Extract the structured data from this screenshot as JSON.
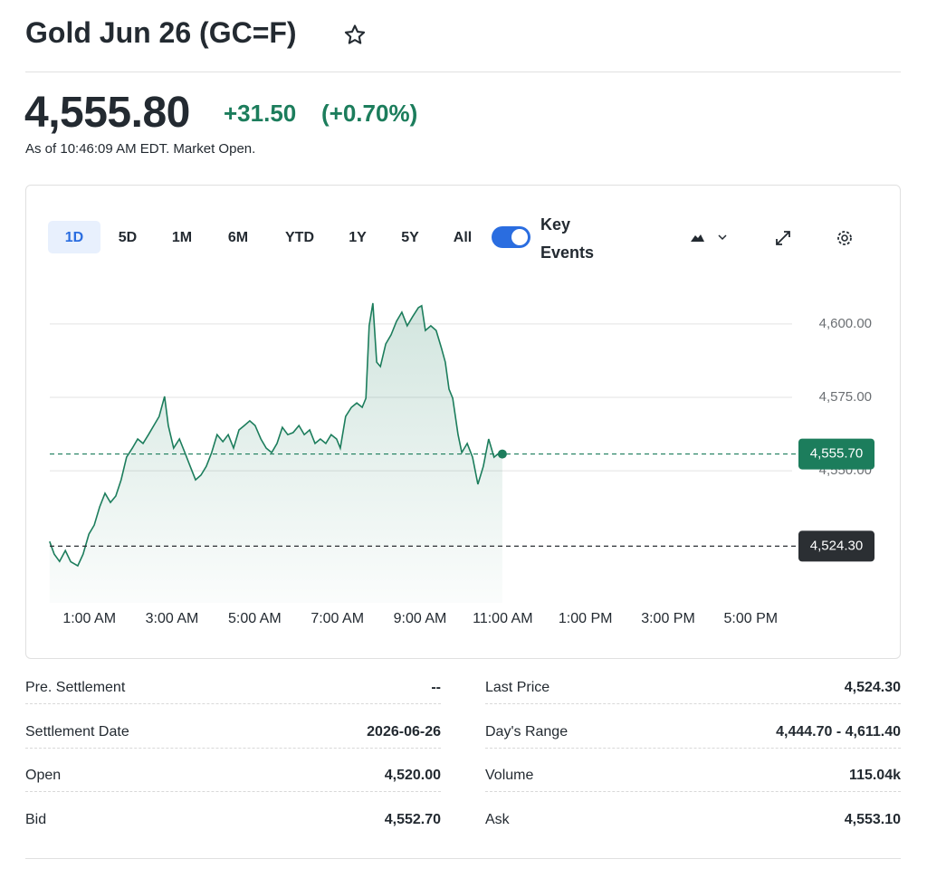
{
  "header": {
    "title": "Gold Jun 26 (GC=F)"
  },
  "quote": {
    "price": "4,555.80",
    "change": "+31.50",
    "change_percent": "(+0.70%)",
    "as_of": "As of 10:46:09 AM EDT. Market Open."
  },
  "ranges": [
    "1D",
    "5D",
    "1M",
    "6M",
    "YTD",
    "1Y",
    "5Y",
    "All"
  ],
  "key_events": "Key Events",
  "chart_data": {
    "type": "line",
    "color": "#1c7d5c",
    "x": [
      0.04,
      0.15,
      0.28,
      0.42,
      0.55,
      0.72,
      0.85,
      0.99,
      1.12,
      1.25,
      1.38,
      1.51,
      1.64,
      1.77,
      1.9,
      2.04,
      2.17,
      2.3,
      2.43,
      2.56,
      2.69,
      2.82,
      2.91,
      3.04,
      3.18,
      3.31,
      3.44,
      3.57,
      3.7,
      3.83,
      3.96,
      4.09,
      4.23,
      4.36,
      4.49,
      4.62,
      4.75,
      4.88,
      5.01,
      5.15,
      5.28,
      5.41,
      5.54,
      5.67,
      5.8,
      5.93,
      6.07,
      6.2,
      6.33,
      6.46,
      6.59,
      6.72,
      6.85,
      6.98,
      7.07,
      7.2,
      7.34,
      7.47,
      7.6,
      7.69,
      7.77,
      7.86,
      7.95,
      8.04,
      8.17,
      8.3,
      8.43,
      8.56,
      8.69,
      8.82,
      8.96,
      9.04,
      9.13,
      9.26,
      9.39,
      9.52,
      9.61,
      9.7,
      9.79,
      9.92,
      10.01,
      10.14,
      10.27,
      10.4,
      10.53,
      10.66,
      10.79,
      10.88,
      10.99
    ],
    "values": [
      4525.9,
      4521.6,
      4519.1,
      4522.8,
      4519.0,
      4517.6,
      4521.6,
      4528.4,
      4531.5,
      4537.7,
      4542.3,
      4539.2,
      4541.4,
      4546.9,
      4554.6,
      4557.7,
      4560.8,
      4559.3,
      4562.3,
      4565.4,
      4568.5,
      4575.3,
      4565.4,
      4557.7,
      4560.8,
      4556.2,
      4551.5,
      4546.9,
      4548.5,
      4551.5,
      4556.2,
      4562.3,
      4559.9,
      4562.3,
      4557.7,
      4563.9,
      4565.4,
      4567.0,
      4565.4,
      4560.8,
      4557.7,
      4556.2,
      4559.3,
      4564.8,
      4562.3,
      4563.0,
      4565.4,
      4562.3,
      4563.9,
      4559.3,
      4560.8,
      4559.3,
      4562.3,
      4560.8,
      4557.7,
      4568.5,
      4571.6,
      4573.1,
      4571.6,
      4574.7,
      4599.4,
      4607.1,
      4587.0,
      4585.5,
      4593.2,
      4596.3,
      4600.9,
      4604.0,
      4599.4,
      4602.5,
      4605.6,
      4606.2,
      4597.8,
      4599.4,
      4597.8,
      4591.7,
      4587.0,
      4577.8,
      4574.7,
      4562.3,
      4556.2,
      4559.3,
      4554.6,
      4545.4,
      4551.5,
      4560.8,
      4554.6,
      4555.7,
      4555.7
    ],
    "xlim": [
      0,
      18
    ],
    "xticks": [
      {
        "value": 1,
        "label": "1:00 AM"
      },
      {
        "value": 3,
        "label": "3:00 AM"
      },
      {
        "value": 5,
        "label": "5:00 AM"
      },
      {
        "value": 7,
        "label": "7:00 AM"
      },
      {
        "value": 9,
        "label": "9:00 AM"
      },
      {
        "value": 11,
        "label": "11:00 AM"
      },
      {
        "value": 13,
        "label": "1:00 PM"
      },
      {
        "value": 15,
        "label": "3:00 PM"
      },
      {
        "value": 17,
        "label": "5:00 PM"
      }
    ],
    "ylim": [
      4505,
      4612
    ],
    "yticks": [
      {
        "value": 4550,
        "label": "4,550.00"
      },
      {
        "value": 4575,
        "label": "4,575.00"
      },
      {
        "value": 4600,
        "label": "4,600.00"
      }
    ],
    "grid": true,
    "reference_lines": [
      {
        "value": 4555.7,
        "label": "4,555.70",
        "color": "#1c7d5c"
      },
      {
        "value": 4524.3,
        "label": "4,524.30",
        "color": "#2b2f33"
      }
    ]
  },
  "stats": {
    "rows": [
      [
        "Pre. Settlement",
        "--",
        "Last Price",
        "4,524.30"
      ],
      [
        "Settlement Date",
        "2026-06-26",
        "Day's Range",
        "4,444.70 - 4,611.40"
      ],
      [
        "Open",
        "4,520.00",
        "Volume",
        "115.04k"
      ],
      [
        "Bid",
        "4,552.70",
        "Ask",
        "4,553.10"
      ]
    ]
  }
}
